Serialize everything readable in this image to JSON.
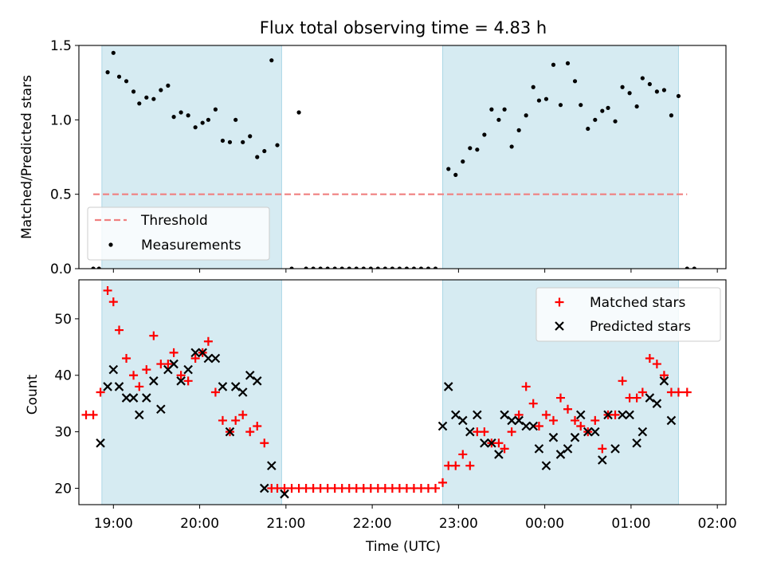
{
  "chart_data": {
    "type": "scatter",
    "title": "Flux total observing time = 4.83 h",
    "colors": {
      "span": "#add8e6",
      "threshold": "#f08080",
      "measurement": "#000000",
      "matched": "#ff0000",
      "predicted": "#000000"
    },
    "x_axis": {
      "label": "Time (UTC)",
      "range": [
        "18:36",
        "02:06"
      ],
      "ticks": [
        "19:00",
        "20:00",
        "21:00",
        "22:00",
        "23:00",
        "00:00",
        "01:00",
        "02:00"
      ]
    },
    "observing_windows": [
      {
        "start": "18:52",
        "end": "20:57"
      },
      {
        "start": "22:49",
        "end": "01:33"
      }
    ],
    "panels": [
      {
        "id": "ratio",
        "ylabel": "Matched/Predicted stars",
        "ylim": [
          0,
          1.5
        ],
        "yticks": [
          "0.0",
          "0.5",
          "1.0",
          "1.5"
        ],
        "legend_position": "lower-left",
        "threshold": {
          "name": "Threshold",
          "value": 0.5,
          "x_start": "18:46",
          "x_end": "01:39"
        },
        "series": [
          {
            "name": "Measurements",
            "marker": "dot",
            "points": [
              [
                "18:46",
                0
              ],
              [
                "18:50",
                0
              ],
              [
                "18:56",
                1.32
              ],
              [
                "19:00",
                1.45
              ],
              [
                "19:04",
                1.29
              ],
              [
                "19:09",
                1.26
              ],
              [
                "19:14",
                1.19
              ],
              [
                "19:18",
                1.11
              ],
              [
                "19:23",
                1.15
              ],
              [
                "19:28",
                1.14
              ],
              [
                "19:33",
                1.2
              ],
              [
                "19:38",
                1.23
              ],
              [
                "19:42",
                1.02
              ],
              [
                "19:47",
                1.05
              ],
              [
                "19:52",
                1.03
              ],
              [
                "19:57",
                0.95
              ],
              [
                "20:02",
                0.98
              ],
              [
                "20:06",
                1.0
              ],
              [
                "20:11",
                1.07
              ],
              [
                "20:16",
                0.86
              ],
              [
                "20:21",
                0.85
              ],
              [
                "20:25",
                1.0
              ],
              [
                "20:30",
                0.85
              ],
              [
                "20:35",
                0.89
              ],
              [
                "20:40",
                0.75
              ],
              [
                "20:45",
                0.79
              ],
              [
                "20:50",
                1.4
              ],
              [
                "20:54",
                0.83
              ],
              [
                "21:04",
                0
              ],
              [
                "21:09",
                1.05
              ],
              [
                "21:14",
                0
              ],
              [
                "21:19",
                0
              ],
              [
                "21:24",
                0
              ],
              [
                "21:29",
                0
              ],
              [
                "21:34",
                0
              ],
              [
                "21:39",
                0
              ],
              [
                "21:44",
                0
              ],
              [
                "21:49",
                0
              ],
              [
                "21:54",
                0
              ],
              [
                "21:59",
                0
              ],
              [
                "22:04",
                0
              ],
              [
                "22:09",
                0
              ],
              [
                "22:14",
                0
              ],
              [
                "22:19",
                0
              ],
              [
                "22:24",
                0
              ],
              [
                "22:29",
                0
              ],
              [
                "22:34",
                0
              ],
              [
                "22:39",
                0
              ],
              [
                "22:44",
                0
              ],
              [
                "22:53",
                0.67
              ],
              [
                "22:58",
                0.63
              ],
              [
                "23:03",
                0.72
              ],
              [
                "23:08",
                0.81
              ],
              [
                "23:13",
                0.8
              ],
              [
                "23:18",
                0.9
              ],
              [
                "23:23",
                1.07
              ],
              [
                "23:28",
                1.0
              ],
              [
                "23:32",
                1.07
              ],
              [
                "23:37",
                0.82
              ],
              [
                "23:42",
                0.93
              ],
              [
                "23:47",
                1.03
              ],
              [
                "23:52",
                1.22
              ],
              [
                "23:56",
                1.13
              ],
              [
                "00:01",
                1.14
              ],
              [
                "00:06",
                1.37
              ],
              [
                "00:11",
                1.1
              ],
              [
                "00:16",
                1.38
              ],
              [
                "00:21",
                1.26
              ],
              [
                "00:25",
                1.1
              ],
              [
                "00:30",
                0.94
              ],
              [
                "00:35",
                1.0
              ],
              [
                "00:40",
                1.06
              ],
              [
                "00:44",
                1.08
              ],
              [
                "00:49",
                0.99
              ],
              [
                "00:54",
                1.22
              ],
              [
                "00:59",
                1.18
              ],
              [
                "01:04",
                1.09
              ],
              [
                "01:08",
                1.28
              ],
              [
                "01:13",
                1.24
              ],
              [
                "01:18",
                1.19
              ],
              [
                "01:23",
                1.2
              ],
              [
                "01:28",
                1.03
              ],
              [
                "01:33",
                1.16
              ],
              [
                "01:39",
                0
              ],
              [
                "01:44",
                0
              ]
            ]
          }
        ]
      },
      {
        "id": "counts",
        "ylabel": "Count",
        "ylim": [
          17.1,
          56.9
        ],
        "yticks": [
          "20",
          "30",
          "40",
          "50"
        ],
        "legend_position": "upper-right",
        "series": [
          {
            "name": "Matched stars",
            "marker": "plus",
            "points": [
              [
                "18:41",
                33
              ],
              [
                "18:46",
                33
              ],
              [
                "18:51",
                37
              ],
              [
                "18:56",
                55
              ],
              [
                "19:00",
                53
              ],
              [
                "19:04",
                48
              ],
              [
                "19:09",
                43
              ],
              [
                "19:14",
                40
              ],
              [
                "19:18",
                38
              ],
              [
                "19:23",
                41
              ],
              [
                "19:28",
                47
              ],
              [
                "19:33",
                42
              ],
              [
                "19:38",
                42
              ],
              [
                "19:42",
                44
              ],
              [
                "19:47",
                40
              ],
              [
                "19:52",
                39
              ],
              [
                "19:57",
                43
              ],
              [
                "20:02",
                44
              ],
              [
                "20:06",
                46
              ],
              [
                "20:11",
                37
              ],
              [
                "20:16",
                32
              ],
              [
                "20:21",
                30
              ],
              [
                "20:25",
                32
              ],
              [
                "20:30",
                33
              ],
              [
                "20:35",
                30
              ],
              [
                "20:40",
                31
              ],
              [
                "20:45",
                28
              ],
              [
                "20:50",
                20
              ],
              [
                "20:54",
                20
              ],
              [
                "20:59",
                20
              ],
              [
                "21:04",
                20
              ],
              [
                "21:09",
                20
              ],
              [
                "21:14",
                20
              ],
              [
                "21:19",
                20
              ],
              [
                "21:24",
                20
              ],
              [
                "21:29",
                20
              ],
              [
                "21:34",
                20
              ],
              [
                "21:39",
                20
              ],
              [
                "21:44",
                20
              ],
              [
                "21:49",
                20
              ],
              [
                "21:54",
                20
              ],
              [
                "21:59",
                20
              ],
              [
                "22:04",
                20
              ],
              [
                "22:09",
                20
              ],
              [
                "22:14",
                20
              ],
              [
                "22:19",
                20
              ],
              [
                "22:24",
                20
              ],
              [
                "22:29",
                20
              ],
              [
                "22:34",
                20
              ],
              [
                "22:39",
                20
              ],
              [
                "22:44",
                20
              ],
              [
                "22:49",
                21
              ],
              [
                "22:53",
                24
              ],
              [
                "22:58",
                24
              ],
              [
                "23:03",
                26
              ],
              [
                "23:08",
                24
              ],
              [
                "23:13",
                30
              ],
              [
                "23:18",
                30
              ],
              [
                "23:23",
                28
              ],
              [
                "23:28",
                28
              ],
              [
                "23:32",
                27
              ],
              [
                "23:37",
                30
              ],
              [
                "23:42",
                33
              ],
              [
                "23:47",
                38
              ],
              [
                "23:52",
                35
              ],
              [
                "23:56",
                31
              ],
              [
                "00:01",
                33
              ],
              [
                "00:06",
                32
              ],
              [
                "00:11",
                36
              ],
              [
                "00:16",
                34
              ],
              [
                "00:21",
                32
              ],
              [
                "00:25",
                31
              ],
              [
                "00:30",
                30
              ],
              [
                "00:35",
                32
              ],
              [
                "00:40",
                27
              ],
              [
                "00:44",
                33
              ],
              [
                "00:49",
                33
              ],
              [
                "00:54",
                39
              ],
              [
                "00:59",
                36
              ],
              [
                "01:04",
                36
              ],
              [
                "01:08",
                37
              ],
              [
                "01:13",
                43
              ],
              [
                "01:18",
                42
              ],
              [
                "01:23",
                40
              ],
              [
                "01:28",
                37
              ],
              [
                "01:33",
                37
              ],
              [
                "01:39",
                37
              ]
            ]
          },
          {
            "name": "Predicted stars",
            "marker": "x",
            "points": [
              [
                "18:51",
                28
              ],
              [
                "18:56",
                38
              ],
              [
                "19:00",
                41
              ],
              [
                "19:04",
                38
              ],
              [
                "19:09",
                36
              ],
              [
                "19:14",
                36
              ],
              [
                "19:18",
                33
              ],
              [
                "19:23",
                36
              ],
              [
                "19:28",
                39
              ],
              [
                "19:33",
                34
              ],
              [
                "19:38",
                41
              ],
              [
                "19:42",
                42
              ],
              [
                "19:47",
                39
              ],
              [
                "19:52",
                41
              ],
              [
                "19:57",
                44
              ],
              [
                "20:02",
                44
              ],
              [
                "20:06",
                43
              ],
              [
                "20:11",
                43
              ],
              [
                "20:16",
                38
              ],
              [
                "20:21",
                30
              ],
              [
                "20:25",
                38
              ],
              [
                "20:30",
                37
              ],
              [
                "20:35",
                40
              ],
              [
                "20:40",
                39
              ],
              [
                "20:45",
                20
              ],
              [
                "20:50",
                24
              ],
              [
                "20:59",
                19
              ],
              [
                "22:49",
                31
              ],
              [
                "22:53",
                38
              ],
              [
                "22:58",
                33
              ],
              [
                "23:03",
                32
              ],
              [
                "23:08",
                30
              ],
              [
                "23:13",
                33
              ],
              [
                "23:18",
                28
              ],
              [
                "23:23",
                28
              ],
              [
                "23:28",
                26
              ],
              [
                "23:32",
                33
              ],
              [
                "23:37",
                32
              ],
              [
                "23:42",
                32
              ],
              [
                "23:47",
                31
              ],
              [
                "23:52",
                31
              ],
              [
                "23:56",
                27
              ],
              [
                "00:01",
                24
              ],
              [
                "00:06",
                29
              ],
              [
                "00:11",
                26
              ],
              [
                "00:16",
                27
              ],
              [
                "00:21",
                29
              ],
              [
                "00:25",
                33
              ],
              [
                "00:30",
                30
              ],
              [
                "00:35",
                30
              ],
              [
                "00:40",
                25
              ],
              [
                "00:44",
                33
              ],
              [
                "00:49",
                27
              ],
              [
                "00:54",
                33
              ],
              [
                "00:59",
                33
              ],
              [
                "01:04",
                28
              ],
              [
                "01:08",
                30
              ],
              [
                "01:13",
                36
              ],
              [
                "01:18",
                35
              ],
              [
                "01:23",
                39
              ],
              [
                "01:28",
                32
              ]
            ]
          }
        ]
      }
    ]
  }
}
